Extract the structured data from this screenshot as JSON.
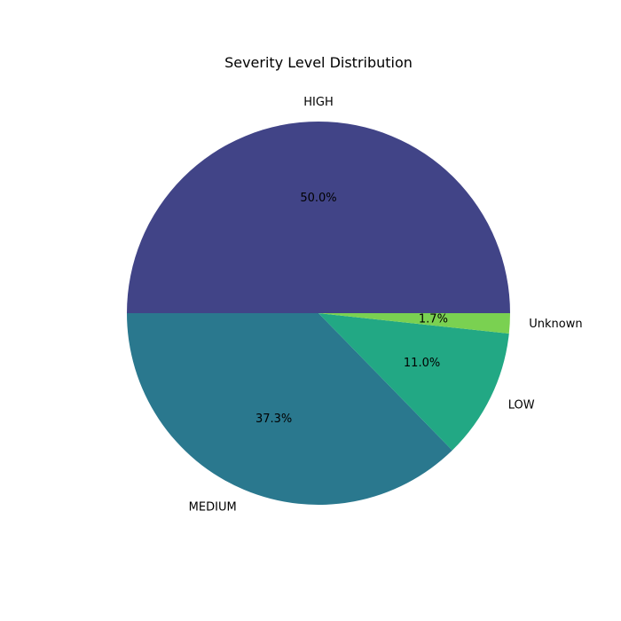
{
  "chart_data": {
    "type": "pie",
    "title": "Severity Level Distribution",
    "categories": [
      "HIGH",
      "MEDIUM",
      "LOW",
      "Unknown"
    ],
    "values": [
      50.0,
      37.3,
      11.0,
      1.7
    ],
    "percent_labels": [
      "50.0%",
      "37.3%",
      "11.0%",
      "1.7%"
    ],
    "colors": [
      "#414487",
      "#2a788e",
      "#22a884",
      "#7ad151"
    ],
    "start_angle_deg": 0,
    "direction": "counterclockwise",
    "legend": "none"
  }
}
